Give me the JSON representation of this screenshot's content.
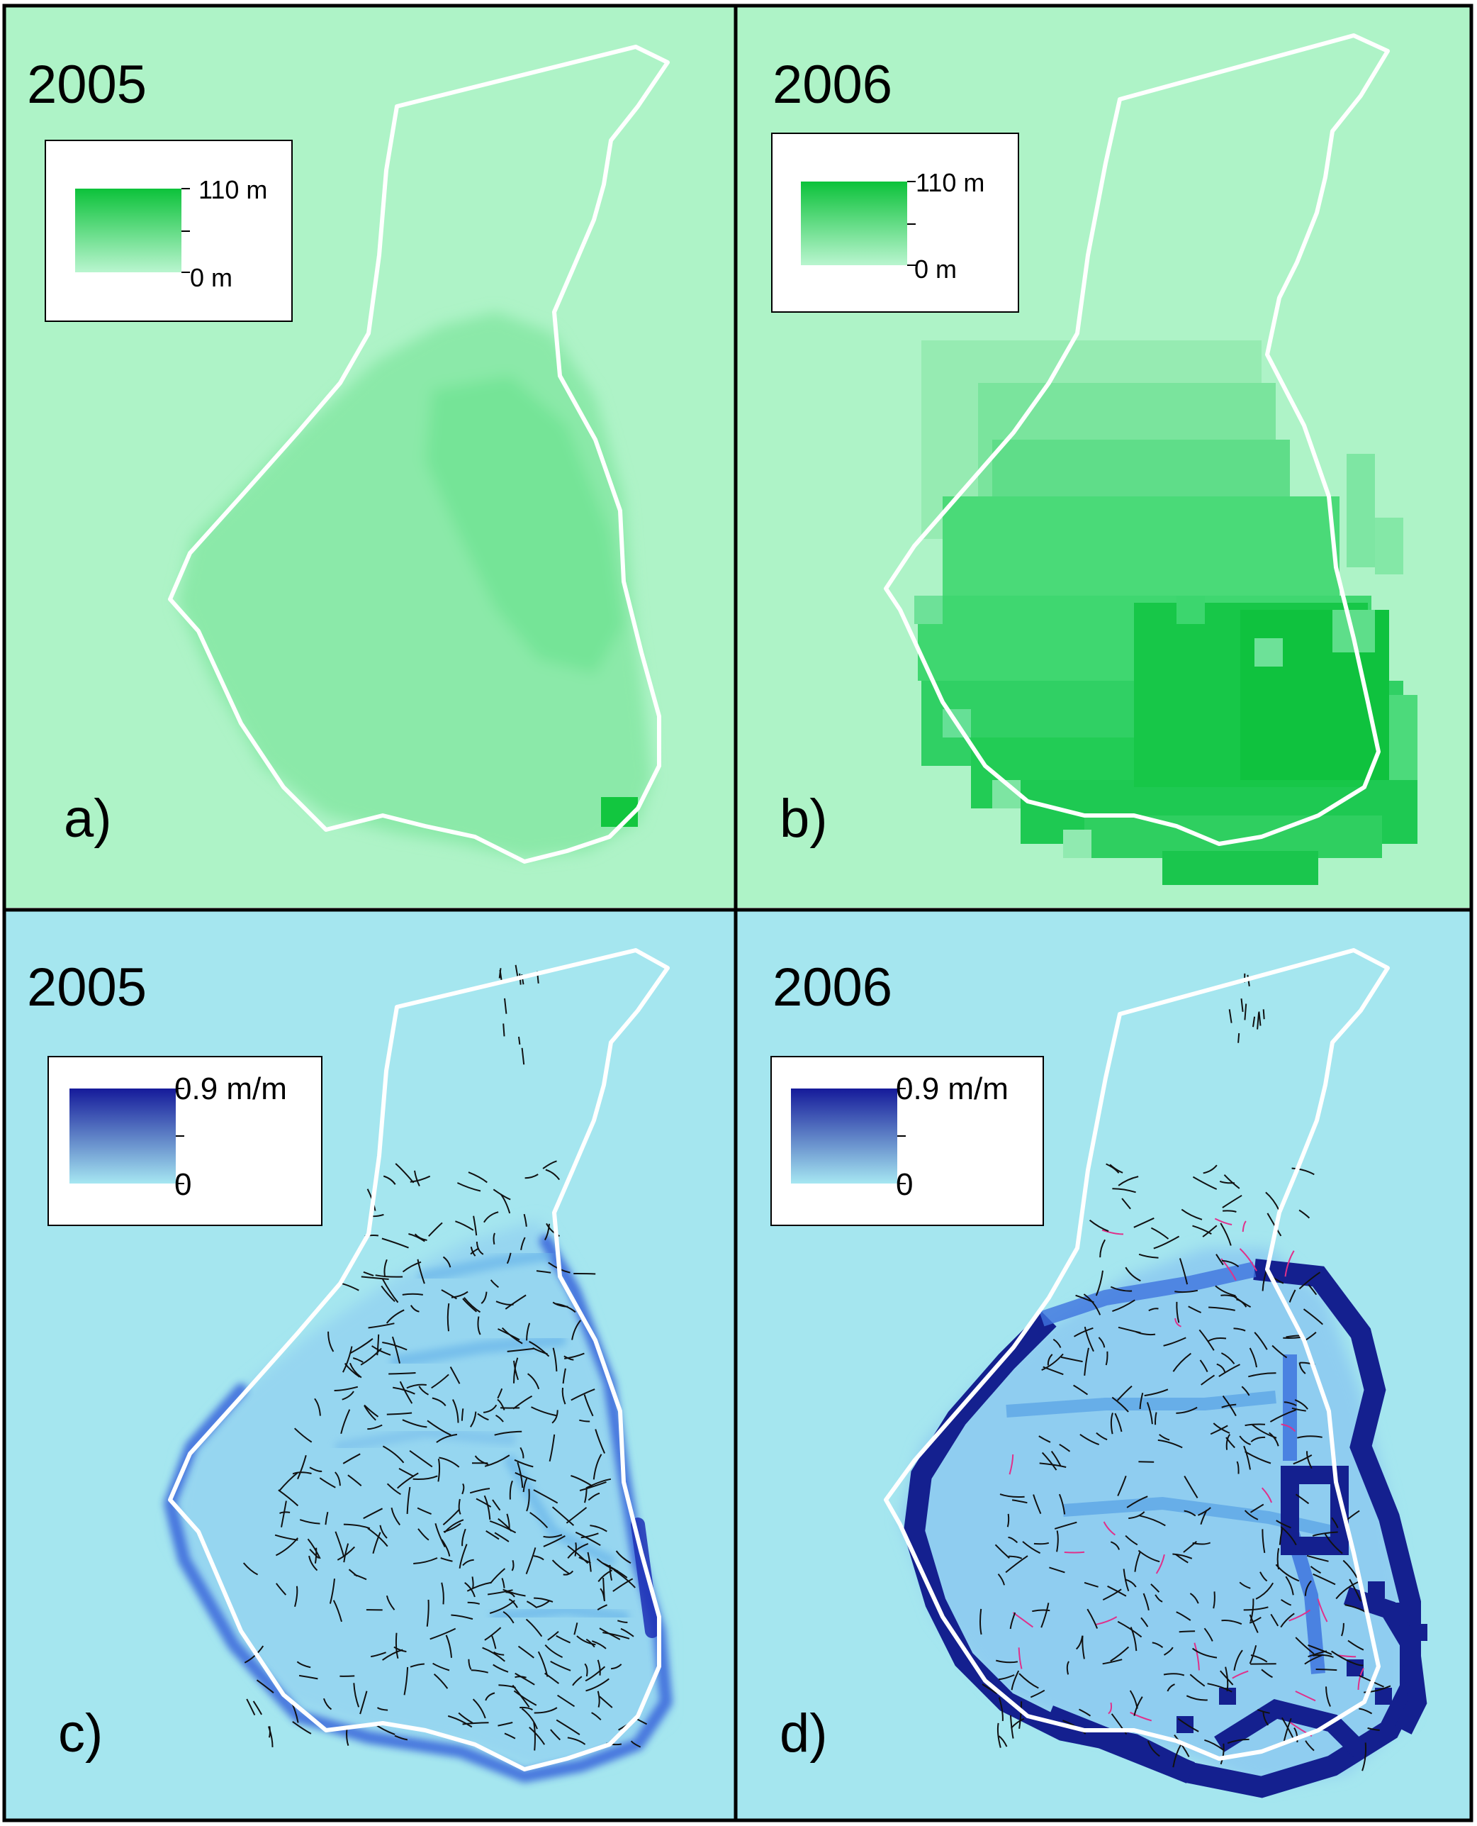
{
  "panels": [
    {
      "id": "a",
      "year": "2005",
      "label": "a)",
      "legend": {
        "max_label": "110 m",
        "min_label": "0 m",
        "color_low": "#b9f5cf",
        "color_high": "#0cc23a"
      },
      "background_color": "#aef3c7",
      "fill_color_main": "#8be9a9",
      "fill_color_dark": "#5fdd86"
    },
    {
      "id": "b",
      "year": "2006",
      "label": "b)",
      "legend": {
        "max_label": "110 m",
        "min_label": "0 m",
        "color_low": "#b9f5cf",
        "color_high": "#0cc23a"
      },
      "background_color": "#aef3c7",
      "fill_color_main": "#4fe07e",
      "fill_color_dark": "#14c844"
    },
    {
      "id": "c",
      "year": "2005",
      "label": "c)",
      "legend": {
        "max_label": "0.9 m/m",
        "min_label": "0",
        "color_low": "#a6e7f2",
        "color_high": "#151a9a"
      },
      "background_color": "#a5e6ef",
      "fill_color_main": "#96d6f0",
      "edge_color": "#2a55d8"
    },
    {
      "id": "d",
      "year": "2006",
      "label": "d)",
      "legend": {
        "max_label": "0.9 m/m",
        "min_label": "0",
        "color_low": "#a6e7f2",
        "color_high": "#151a9a"
      },
      "background_color": "#a5e6ef",
      "fill_color_main": "#8fcdf0",
      "edge_color": "#14208f"
    }
  ],
  "outline_color": "#ffffff",
  "crack_color": "#111111",
  "crack_color_new": "#e0308a"
}
